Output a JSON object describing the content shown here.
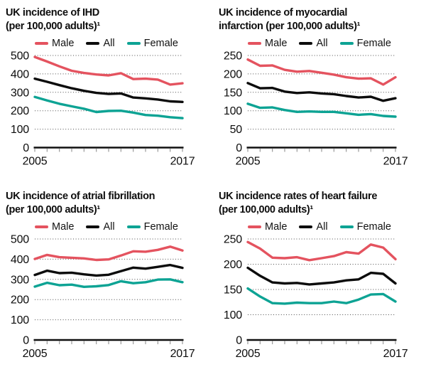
{
  "colors": {
    "male": "#e4535f",
    "all": "#0c0c0c",
    "female": "#0da394",
    "grid_dots": "#4d4d4d",
    "axis_line": "#101010",
    "tick_marks": "#9a9a9a",
    "text": "#0d0d0d",
    "background": "#ffffff"
  },
  "chart_data": [
    {
      "id": "ihd",
      "type": "line",
      "title_lines": [
        "UK incidence of IHD",
        "(per 100,000 adults)¹"
      ],
      "x": [
        2005,
        2006,
        2007,
        2008,
        2009,
        2010,
        2011,
        2012,
        2013,
        2014,
        2015,
        2016,
        2017
      ],
      "x_axis_labels": [
        "2005",
        "2017"
      ],
      "yticks": [
        500,
        400,
        300,
        200,
        100,
        0
      ],
      "ylim": [
        0,
        500
      ],
      "grid": "dotted",
      "legend_position": "top",
      "series": [
        {
          "name": "Male",
          "color_key": "male",
          "values": [
            492,
            467,
            441,
            417,
            405,
            397,
            392,
            404,
            372,
            374,
            369,
            342,
            349
          ]
        },
        {
          "name": "All",
          "color_key": "all",
          "values": [
            374,
            357,
            339,
            322,
            308,
            297,
            291,
            294,
            272,
            267,
            261,
            251,
            248
          ]
        },
        {
          "name": "Female",
          "color_key": "female",
          "values": [
            275,
            256,
            238,
            224,
            211,
            193,
            199,
            200,
            190,
            177,
            173,
            165,
            160
          ]
        }
      ]
    },
    {
      "id": "myocardial-infarction",
      "type": "line",
      "title_lines": [
        "UK incidence of myocardial",
        "infarction (per 100,000 adults)¹"
      ],
      "x": [
        2005,
        2006,
        2007,
        2008,
        2009,
        2010,
        2011,
        2012,
        2013,
        2014,
        2015,
        2016,
        2017
      ],
      "x_axis_labels": [
        "2005",
        "2017"
      ],
      "yticks": [
        250,
        200,
        150,
        100,
        50,
        0
      ],
      "ylim": [
        0,
        250
      ],
      "grid": "dotted",
      "legend_position": "top",
      "series": [
        {
          "name": "Male",
          "color_key": "male",
          "values": [
            239,
            222,
            223,
            211,
            206,
            208,
            203,
            198,
            191,
            187,
            188,
            171,
            191
          ]
        },
        {
          "name": "All",
          "color_key": "all",
          "values": [
            175,
            161,
            162,
            152,
            148,
            150,
            147,
            145,
            140,
            136,
            138,
            127,
            134
          ]
        },
        {
          "name": "Female",
          "color_key": "female",
          "values": [
            119,
            108,
            109,
            102,
            97,
            98,
            97,
            97,
            93,
            89,
            91,
            86,
            84
          ]
        }
      ]
    },
    {
      "id": "atrial-fibrillation",
      "type": "line",
      "title_lines": [
        "UK incidence of atrial fibrillation",
        "(per 100,000 adults)¹"
      ],
      "x": [
        2005,
        2006,
        2007,
        2008,
        2009,
        2010,
        2011,
        2012,
        2013,
        2014,
        2015,
        2016,
        2017
      ],
      "x_axis_labels": [
        "2005",
        "2017"
      ],
      "yticks": [
        500,
        400,
        300,
        200,
        100,
        0
      ],
      "ylim": [
        0,
        500
      ],
      "grid": "dotted",
      "legend_position": "top",
      "series": [
        {
          "name": "Male",
          "color_key": "male",
          "values": [
            401,
            421,
            410,
            407,
            404,
            396,
            399,
            418,
            439,
            437,
            446,
            462,
            443
          ]
        },
        {
          "name": "All",
          "color_key": "all",
          "values": [
            322,
            343,
            331,
            333,
            325,
            319,
            323,
            341,
            358,
            353,
            362,
            371,
            357
          ]
        },
        {
          "name": "Female",
          "color_key": "female",
          "values": [
            264,
            283,
            271,
            274,
            263,
            266,
            272,
            291,
            281,
            286,
            299,
            300,
            286
          ]
        }
      ]
    },
    {
      "id": "heart-failure",
      "type": "line",
      "title_lines": [
        "UK incidence rates of heart failure",
        "(per 100,000 adults)¹"
      ],
      "x": [
        2005,
        2006,
        2007,
        2008,
        2009,
        2010,
        2011,
        2012,
        2013,
        2014,
        2015,
        2016,
        2017
      ],
      "x_axis_labels": [
        "2005",
        "2017"
      ],
      "yticks": [
        250,
        200,
        150,
        100,
        0
      ],
      "ylim": [
        0,
        250
      ],
      "y_axis_note": "tick spacing uniform per label; segment 100-to-0 compressed",
      "grid": "dotted",
      "legend_position": "top",
      "series": [
        {
          "name": "Male",
          "color_key": "male",
          "values": [
            244,
            231,
            213,
            212,
            214,
            208,
            212,
            216,
            224,
            221,
            239,
            233,
            210
          ]
        },
        {
          "name": "All",
          "color_key": "all",
          "values": [
            193,
            177,
            164,
            162,
            163,
            160,
            162,
            164,
            168,
            170,
            183,
            181,
            162
          ]
        },
        {
          "name": "Female",
          "color_key": "female",
          "values": [
            152,
            136,
            123,
            122,
            124,
            123,
            123,
            126,
            123,
            130,
            140,
            141,
            126
          ]
        }
      ]
    }
  ]
}
